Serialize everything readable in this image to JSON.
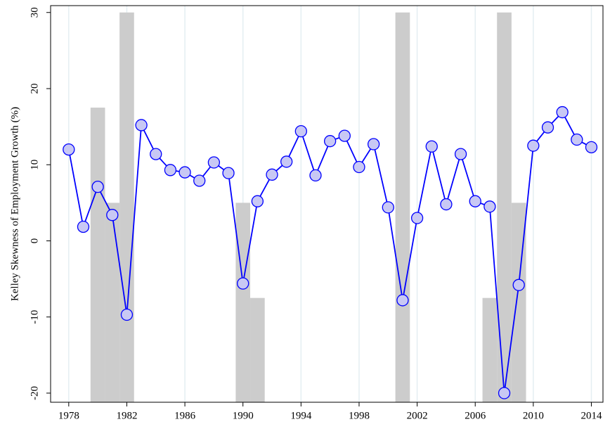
{
  "chart_data": {
    "type": "line",
    "ylabel": "Kelley Skewness of Employment Growth (%)",
    "x": [
      1978,
      1979,
      1980,
      1981,
      1982,
      1983,
      1984,
      1985,
      1986,
      1987,
      1988,
      1989,
      1990,
      1991,
      1992,
      1993,
      1994,
      1995,
      1996,
      1997,
      1998,
      1999,
      2000,
      2001,
      2002,
      2003,
      2004,
      2005,
      2006,
      2007,
      2008,
      2009,
      2010,
      2011,
      2012,
      2013,
      2014
    ],
    "series": [
      {
        "type": "line",
        "color": "#0000ff",
        "marker_color": "#c8c8f4",
        "values": [
          12.0,
          1.85,
          7.1,
          3.4,
          -9.7,
          15.2,
          11.4,
          9.3,
          9.0,
          7.9,
          10.3,
          8.9,
          -5.6,
          5.2,
          8.7,
          10.4,
          14.4,
          8.6,
          13.1,
          13.8,
          9.7,
          12.7,
          4.4,
          -7.8,
          3.0,
          12.4,
          4.8,
          11.4,
          5.2,
          4.5,
          -20.0,
          -5.8,
          12.5,
          14.9,
          16.9,
          13.3,
          12.3
        ]
      },
      {
        "type": "bar",
        "color": "#cccccc",
        "x": [
          1980,
          1981,
          1982,
          1990,
          1991,
          2001,
          2007,
          2008,
          2009
        ],
        "values": [
          17.5,
          5,
          30,
          5,
          -7.5,
          30,
          -7.5,
          30,
          5
        ]
      }
    ],
    "xlim": [
      1976.75,
      2014.8
    ],
    "ylim": [
      -21.2,
      30.9
    ],
    "xticks": [
      1978,
      1982,
      1986,
      1990,
      1994,
      1998,
      2002,
      2006,
      2010,
      2014
    ],
    "yticks": [
      -20,
      -10,
      0,
      10,
      20,
      30
    ],
    "xgrid": true
  }
}
